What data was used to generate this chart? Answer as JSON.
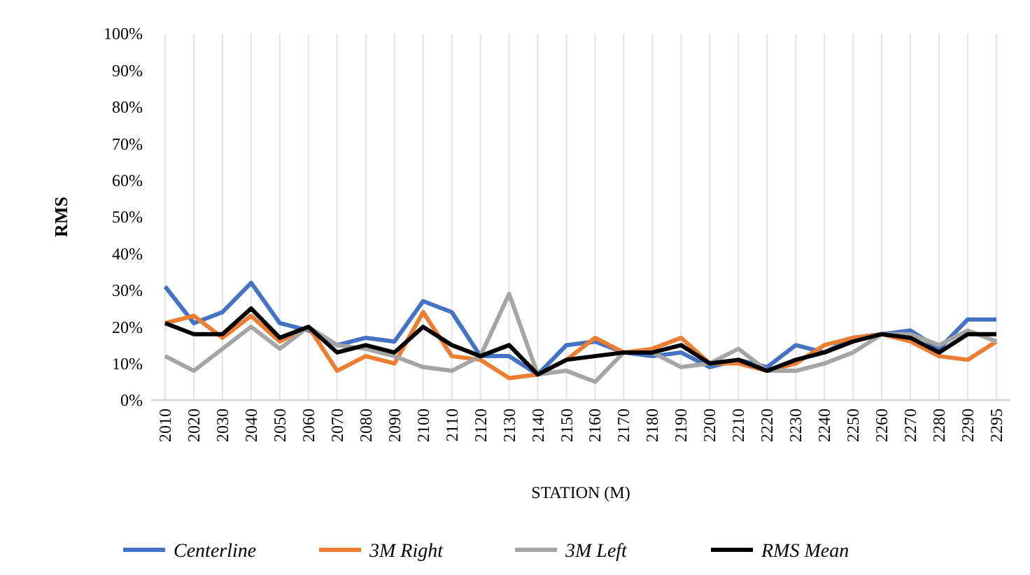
{
  "chart_data": {
    "type": "line",
    "xlabel": "STATION (M)",
    "ylabel": "RMS",
    "categories": [
      "2010",
      "2020",
      "2030",
      "2040",
      "2050",
      "2060",
      "2070",
      "2080",
      "2090",
      "2100",
      "2110",
      "2120",
      "2130",
      "2140",
      "2150",
      "2160",
      "2170",
      "2180",
      "2190",
      "2200",
      "2210",
      "2220",
      "2230",
      "2240",
      "2250",
      "2260",
      "2270",
      "2280",
      "2290",
      "2295"
    ],
    "series": [
      {
        "name": "Centerline",
        "color": "#4472c4",
        "values": [
          31,
          21,
          24,
          32,
          21,
          19,
          15,
          17,
          16,
          27,
          24,
          12,
          12,
          7,
          15,
          16,
          13,
          12,
          13,
          9,
          11,
          9,
          15,
          13,
          17,
          18,
          19,
          14,
          22,
          22
        ]
      },
      {
        "name": "3M Right",
        "color": "#ed7d31",
        "values": [
          21,
          23,
          17,
          23,
          16,
          20,
          8,
          12,
          10,
          24,
          12,
          11,
          6,
          7,
          11,
          17,
          13,
          14,
          17,
          10,
          10,
          8,
          10,
          15,
          17,
          18,
          16,
          12,
          11,
          16
        ]
      },
      {
        "name": "3M Left",
        "color": "#a5a5a5",
        "values": [
          12,
          8,
          14,
          20,
          14,
          20,
          15,
          14,
          12,
          9,
          8,
          12,
          29,
          7,
          8,
          5,
          13,
          13,
          9,
          10,
          14,
          8,
          8,
          10,
          13,
          18,
          18,
          15,
          19,
          16
        ]
      },
      {
        "name": "RMS Mean",
        "color": "#000000",
        "values": [
          21,
          18,
          18,
          25,
          17,
          20,
          13,
          15,
          13,
          20,
          15,
          12,
          15,
          7,
          11,
          12,
          13,
          13,
          15,
          10,
          11,
          8,
          11,
          13,
          16,
          18,
          17,
          13,
          18,
          18
        ]
      }
    ],
    "ylim": [
      0,
      100
    ],
    "yticks": [
      {
        "value": 0,
        "label": "0%"
      },
      {
        "value": 10,
        "label": "10%"
      },
      {
        "value": 20,
        "label": "20%"
      },
      {
        "value": 30,
        "label": "30%"
      },
      {
        "value": 40,
        "label": "40%"
      },
      {
        "value": 50,
        "label": "50%"
      },
      {
        "value": 60,
        "label": "60%"
      },
      {
        "value": 70,
        "label": "70%"
      },
      {
        "value": 80,
        "label": "80%"
      },
      {
        "value": 90,
        "label": "90%"
      },
      {
        "value": 100,
        "label": "100%"
      }
    ],
    "grid": "x",
    "legend": "bottom",
    "marker": "none",
    "line_style": "solid"
  }
}
